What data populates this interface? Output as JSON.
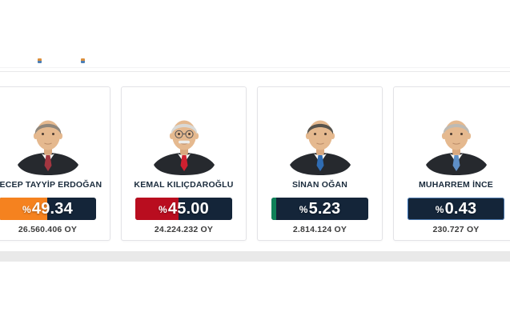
{
  "page": {
    "background": "#ffffff",
    "divider_color": "#e8e8ea",
    "bottom_band_color": "#e9e9e9",
    "tiny_icon_colors": [
      "#D98F3E",
      "#4D7FB5"
    ]
  },
  "results": {
    "percent_prefix": "%",
    "track_color": "#142539",
    "avatar": {
      "suit_color": "#26292E",
      "skin_color": "#E5B98F",
      "shirt_color": "#F6F6F4"
    },
    "candidates": [
      {
        "name": "RECEP TAYYİP ERDOĞAN",
        "percent": "49.34",
        "percent_value": 49.34,
        "votes": "26.560.406 OY",
        "fill_color": "#F5821F",
        "bar_border_color": null,
        "tie_color": "#A33640",
        "hair_color": "#8F867B",
        "has_glasses": false,
        "has_mustache": false
      },
      {
        "name": "KEMAL KILIÇDAROĞLU",
        "percent": "45.00",
        "percent_value": 45.0,
        "votes": "24.224.232 OY",
        "fill_color": "#B90D1F",
        "bar_border_color": null,
        "tie_color": "#CE2030",
        "hair_color": "#D9D9D6",
        "has_glasses": true,
        "has_mustache": true
      },
      {
        "name": "SİNAN OĞAN",
        "percent": "5.23",
        "percent_value": 5.23,
        "votes": "2.814.124 OY",
        "fill_color": "#0F8159",
        "bar_border_color": null,
        "tie_color": "#2F6CB3",
        "hair_color": "#57534C",
        "has_glasses": false,
        "has_mustache": false
      },
      {
        "name": "MUHARREM İNCE",
        "percent": "0.43",
        "percent_value": 0.43,
        "votes": "230.727 OY",
        "fill_color": "#2E6DB4",
        "bar_border_color": "#4A77AD",
        "tie_color": "#5E8FC7",
        "hair_color": "#BDBAB4",
        "has_glasses": false,
        "has_mustache": false
      }
    ]
  }
}
